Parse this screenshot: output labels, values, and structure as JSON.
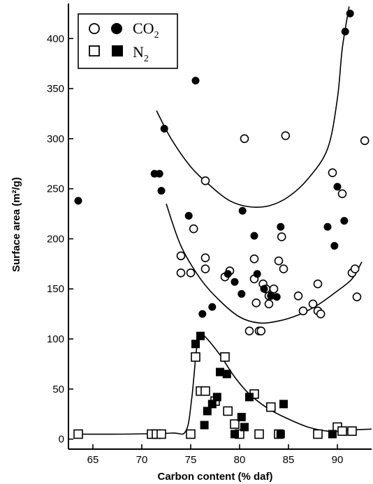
{
  "chart_data": {
    "type": "scatter",
    "xlabel": "Carbon content (% daf)",
    "ylabel": "Surface area (m²/g)",
    "xlim": [
      62.5,
      93.5
    ],
    "ylim": [
      -10,
      435
    ],
    "x_ticks": [
      65,
      70,
      75,
      80,
      85,
      90
    ],
    "y_ticks": [
      0,
      50,
      100,
      150,
      200,
      250,
      300,
      350,
      400
    ],
    "legend": {
      "position": "top-left",
      "entries": [
        {
          "label": "CO",
          "subscript": "2",
          "markers": [
            "open-circle",
            "filled-circle"
          ]
        },
        {
          "label": "N",
          "subscript": "2",
          "markers": [
            "open-square",
            "filled-square"
          ]
        }
      ]
    },
    "series": [
      {
        "gas": "CO2",
        "marker": "open-circle",
        "points": [
          [
            74,
            183
          ],
          [
            74,
            166
          ],
          [
            75,
            166
          ],
          [
            75.3,
            210
          ],
          [
            76.5,
            258
          ],
          [
            76.5,
            181
          ],
          [
            76.5,
            170
          ],
          [
            78.5,
            162
          ],
          [
            79,
            168
          ],
          [
            80.5,
            300
          ],
          [
            81.5,
            180
          ],
          [
            81.5,
            160
          ],
          [
            81.7,
            136
          ],
          [
            82,
            108
          ],
          [
            81,
            108
          ],
          [
            82.2,
            108
          ],
          [
            82.4,
            155
          ],
          [
            82.7,
            150
          ],
          [
            83,
            143
          ],
          [
            83,
            135
          ],
          [
            83.5,
            150
          ],
          [
            84,
            178
          ],
          [
            84.3,
            202
          ],
          [
            84.5,
            170
          ],
          [
            84.7,
            303
          ],
          [
            86,
            143
          ],
          [
            86.5,
            128
          ],
          [
            87.5,
            135
          ],
          [
            88,
            155
          ],
          [
            88,
            128
          ],
          [
            88.3,
            125
          ],
          [
            89.5,
            266
          ],
          [
            90.5,
            245
          ],
          [
            91.5,
            166
          ],
          [
            91.8,
            170
          ],
          [
            92,
            142
          ],
          [
            92.8,
            298
          ]
        ]
      },
      {
        "gas": "CO2",
        "marker": "filled-circle",
        "points": [
          [
            63.5,
            238
          ],
          [
            71.3,
            265
          ],
          [
            71.8,
            265
          ],
          [
            72,
            248
          ],
          [
            72.3,
            310
          ],
          [
            74.8,
            223
          ],
          [
            75.5,
            358
          ],
          [
            76.2,
            125
          ],
          [
            77.2,
            132
          ],
          [
            78.8,
            165
          ],
          [
            79.5,
            157
          ],
          [
            80.2,
            145
          ],
          [
            80.3,
            228
          ],
          [
            81.5,
            203
          ],
          [
            81.8,
            165
          ],
          [
            82.5,
            150
          ],
          [
            83.2,
            143
          ],
          [
            83.8,
            142
          ],
          [
            84.2,
            212
          ],
          [
            89,
            212
          ],
          [
            89.7,
            193
          ],
          [
            90,
            252
          ],
          [
            90.7,
            218
          ],
          [
            90.8,
            407
          ],
          [
            91.3,
            425
          ]
        ]
      },
      {
        "gas": "N2",
        "marker": "open-square",
        "points": [
          [
            63.5,
            5
          ],
          [
            71,
            5
          ],
          [
            71.5,
            5
          ],
          [
            72,
            5
          ],
          [
            75,
            5
          ],
          [
            75.5,
            82
          ],
          [
            76,
            48
          ],
          [
            76.5,
            48
          ],
          [
            77.5,
            38
          ],
          [
            78.5,
            82
          ],
          [
            78.8,
            28
          ],
          [
            79.5,
            15
          ],
          [
            80,
            5
          ],
          [
            81.5,
            45
          ],
          [
            82,
            5
          ],
          [
            83.2,
            32
          ],
          [
            84,
            5
          ],
          [
            88,
            5
          ],
          [
            90,
            12
          ],
          [
            90.5,
            8
          ],
          [
            91.5,
            8
          ]
        ]
      },
      {
        "gas": "N2",
        "marker": "filled-square",
        "points": [
          [
            75.5,
            95
          ],
          [
            76,
            103
          ],
          [
            76.4,
            14
          ],
          [
            76.7,
            28
          ],
          [
            77.2,
            35
          ],
          [
            77.7,
            42
          ],
          [
            78,
            67
          ],
          [
            78.7,
            65
          ],
          [
            79.5,
            5
          ],
          [
            80.2,
            22
          ],
          [
            80.5,
            12
          ],
          [
            81,
            42
          ],
          [
            84.2,
            5
          ],
          [
            84.5,
            35
          ],
          [
            89.5,
            5
          ]
        ]
      }
    ],
    "trend_curves": [
      {
        "name": "co2-upper-envelope",
        "points": [
          [
            71.5,
            328
          ],
          [
            73,
            300
          ],
          [
            75,
            272
          ],
          [
            77,
            253
          ],
          [
            79,
            238
          ],
          [
            81,
            232
          ],
          [
            83,
            233
          ],
          [
            85,
            242
          ],
          [
            87,
            260
          ],
          [
            89,
            290
          ],
          [
            90,
            340
          ],
          [
            90.5,
            390
          ],
          [
            91.2,
            432
          ]
        ]
      },
      {
        "name": "co2-lower-envelope",
        "points": [
          [
            72.5,
            235
          ],
          [
            74,
            193
          ],
          [
            76,
            160
          ],
          [
            78,
            138
          ],
          [
            80,
            122
          ],
          [
            82,
            116
          ],
          [
            84,
            118
          ],
          [
            86,
            124
          ],
          [
            88,
            134
          ],
          [
            90,
            148
          ],
          [
            91.5,
            160
          ],
          [
            92.5,
            177
          ]
        ]
      },
      {
        "name": "n2-curve",
        "points": [
          [
            63.5,
            5
          ],
          [
            68,
            5
          ],
          [
            73,
            6
          ],
          [
            74.5,
            8
          ],
          [
            75.1,
            40
          ],
          [
            75.6,
            90
          ],
          [
            76,
            104
          ],
          [
            76.5,
            102
          ],
          [
            78,
            84
          ],
          [
            79.5,
            62
          ],
          [
            81,
            45
          ],
          [
            83,
            30
          ],
          [
            85,
            20
          ],
          [
            87,
            12
          ],
          [
            89,
            8
          ],
          [
            91,
            9
          ],
          [
            93.5,
            10
          ]
        ]
      }
    ]
  }
}
